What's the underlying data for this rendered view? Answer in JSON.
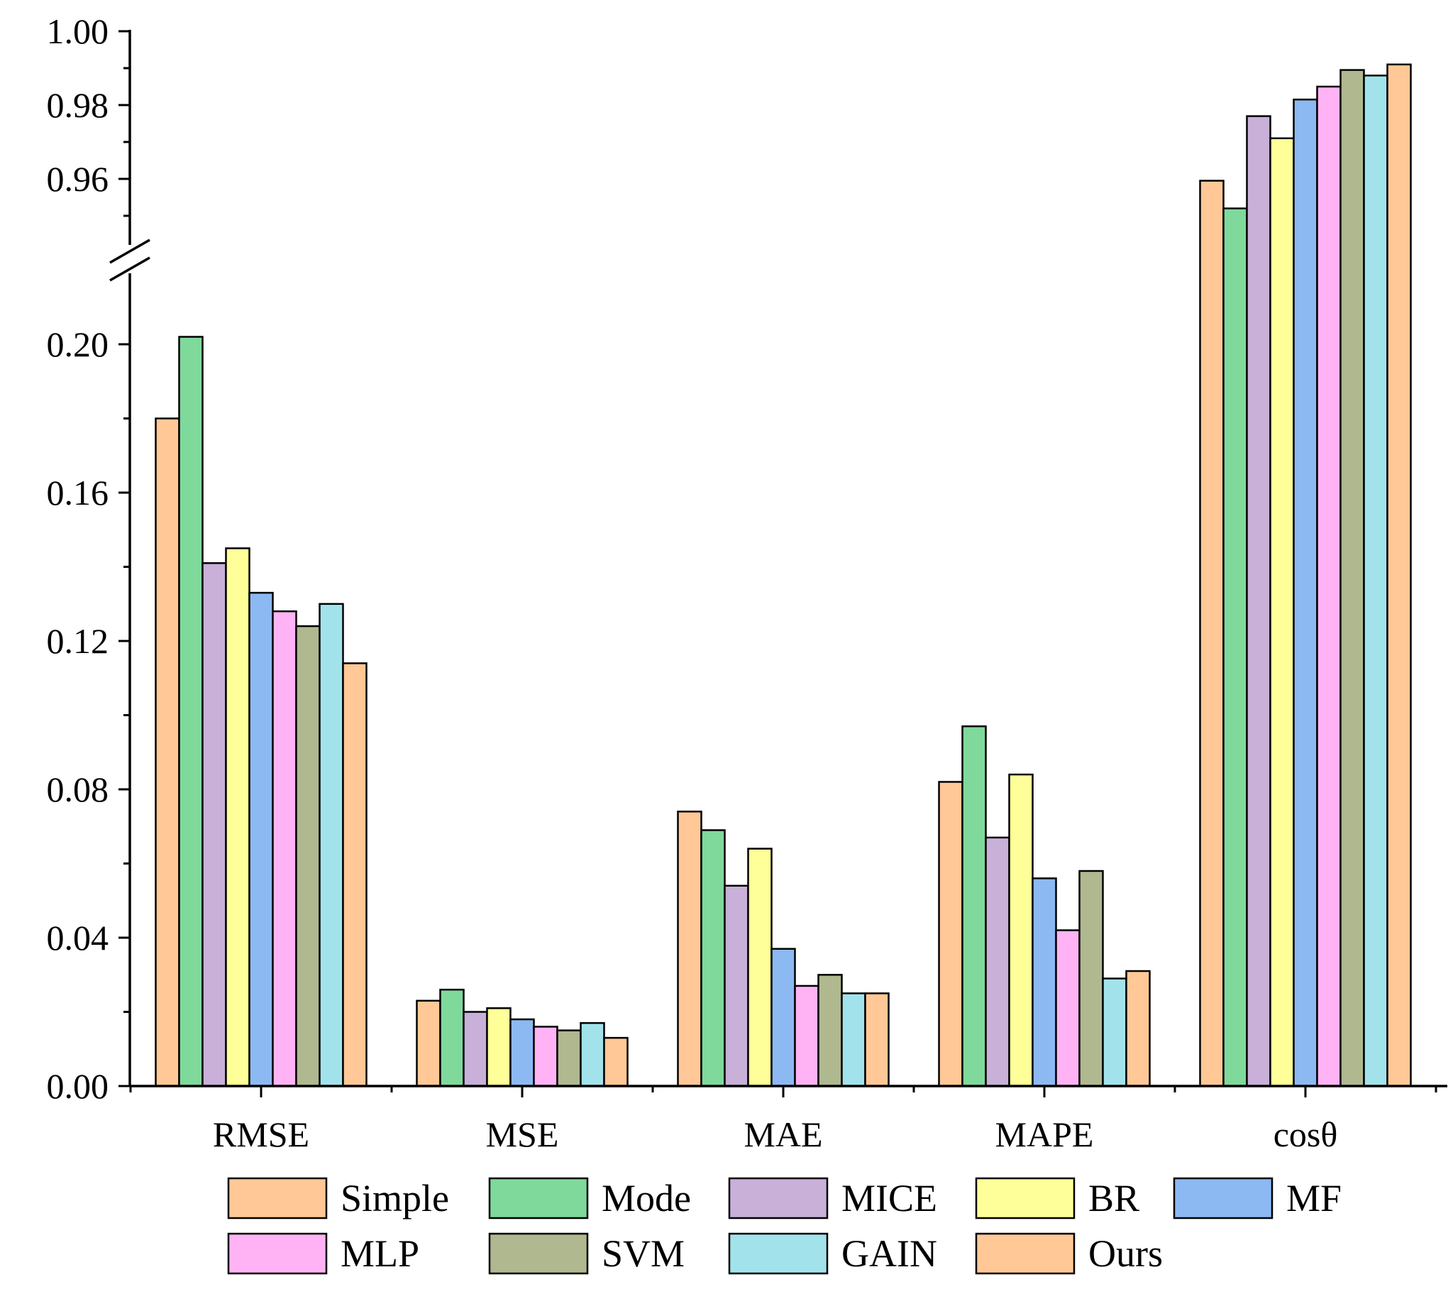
{
  "chart_data": {
    "type": "bar",
    "title": "",
    "xlabel": "",
    "ylabel": "",
    "categories": [
      "RMSE",
      "MSE",
      "MAE",
      "MAPE",
      "cosθ"
    ],
    "y_axis_segments": [
      {
        "name": "lower",
        "range": [
          0.0,
          0.22
        ],
        "tick_labels": [
          "0.00",
          "0.04",
          "0.08",
          "0.12",
          "0.16",
          "0.20"
        ]
      },
      {
        "name": "upper",
        "range": [
          0.94,
          1.0
        ],
        "tick_labels": [
          "0.96",
          "0.98",
          "1.00"
        ]
      }
    ],
    "axis_break": true,
    "grid": false,
    "legend_position": "bottom",
    "series": [
      {
        "name": "Simple",
        "color": "#FFC896",
        "values": [
          0.18,
          0.023,
          0.074,
          0.082,
          0.9595
        ]
      },
      {
        "name": "Mode",
        "color": "#7FD99B",
        "values": [
          0.202,
          0.026,
          0.069,
          0.097,
          0.952
        ]
      },
      {
        "name": "MICE",
        "color": "#C8B0D8",
        "values": [
          0.141,
          0.02,
          0.054,
          0.067,
          0.977
        ]
      },
      {
        "name": "BR",
        "color": "#FFFF99",
        "values": [
          0.145,
          0.021,
          0.064,
          0.084,
          0.971
        ]
      },
      {
        "name": "MF",
        "color": "#8CB9F2",
        "values": [
          0.133,
          0.018,
          0.037,
          0.056,
          0.9815
        ]
      },
      {
        "name": "MLP",
        "color": "#FFB3F5",
        "values": [
          0.128,
          0.016,
          0.027,
          0.042,
          0.985
        ]
      },
      {
        "name": "SVM",
        "color": "#B0B88F",
        "values": [
          0.124,
          0.015,
          0.03,
          0.058,
          0.9895
        ]
      },
      {
        "name": "GAIN",
        "color": "#A2E3EB",
        "values": [
          0.13,
          0.017,
          0.025,
          0.029,
          0.988
        ]
      },
      {
        "name": "Ours",
        "color": "#FFC896",
        "values": [
          0.114,
          0.013,
          0.025,
          0.031,
          0.991
        ]
      }
    ]
  }
}
